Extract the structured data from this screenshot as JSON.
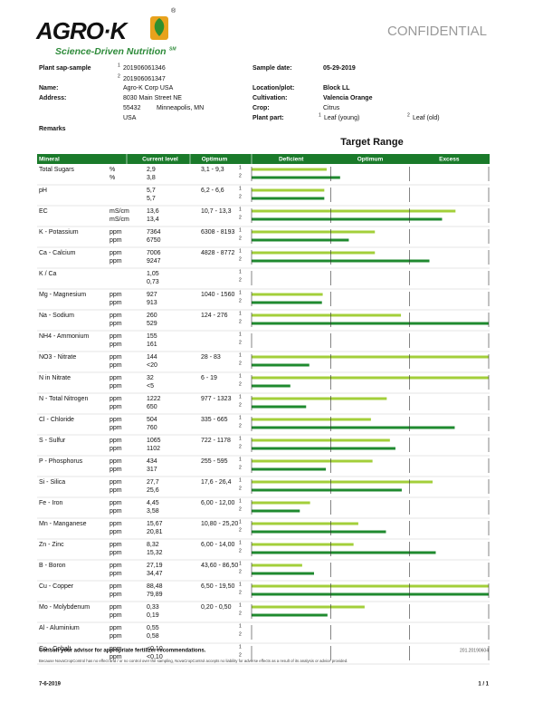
{
  "header": {
    "logo": "AGRO·K",
    "registered": "®",
    "tagline": "Science-Driven Nutrition",
    "tagline_mark": "SM",
    "confidential": "CONFIDENTIAL"
  },
  "info": {
    "markers": [
      "1",
      "2"
    ],
    "sample_label": "Plant sap-sample",
    "sample_ids": [
      "201906061346",
      "201906061347"
    ],
    "name_label": "Name:",
    "name": "Agro-K Corp USA",
    "address_label": "Address:",
    "street": "8030 Main Street NE",
    "zip": "55432",
    "city": "Minneapolis, MN",
    "country": "USA",
    "date_label": "Sample date:",
    "date": "05-29-2019",
    "location_label": "Location/plot:",
    "location": "Block LL",
    "cultivation_label": "Cultivation:",
    "cultivation": "Valencia Orange",
    "crop_label": "Crop:",
    "crop": "Citrus",
    "part_label": "Plant part:",
    "parts": [
      "Leaf (young)",
      "Leaf (old)"
    ],
    "remarks_label": "Remarks"
  },
  "target_title": "Target Range",
  "table": {
    "columns": [
      "Mineral",
      "Current level",
      "Optimum",
      "Deficient",
      "Optimum",
      "Excess"
    ],
    "bar_colors": [
      "#a3cf3a",
      "#1f8a2f"
    ],
    "bar_scale": {
      "xlim": [
        0,
        3
      ],
      "xticks": [
        0,
        1,
        2,
        3
      ]
    },
    "rows": [
      {
        "mineral": "Total Sugars",
        "units": [
          "%",
          "%"
        ],
        "current": [
          "2,9",
          "3,8"
        ],
        "optimum": "3,1 - 9,3",
        "bars": [
          0.95,
          1.12
        ]
      },
      {
        "mineral": "pH",
        "units": [
          null,
          null
        ],
        "current": [
          "5,7",
          "5,7"
        ],
        "optimum": "6,2 - 6,6",
        "bars": [
          0.92,
          0.92
        ]
      },
      {
        "mineral": "EC",
        "units": [
          "mS/cm",
          "mS/cm"
        ],
        "current": [
          "13,6",
          "13,4"
        ],
        "optimum": "10,7 - 13,3",
        "bars": [
          2.58,
          2.41
        ]
      },
      {
        "mineral": "K - Potassium",
        "units": [
          "ppm",
          "ppm"
        ],
        "current": [
          "7364",
          "6750"
        ],
        "optimum": "6308 - 8193",
        "bars": [
          1.56,
          1.23
        ]
      },
      {
        "mineral": "Ca - Calcium",
        "units": [
          "ppm",
          "ppm"
        ],
        "current": [
          "7006",
          "9247"
        ],
        "optimum": "4828 - 8772",
        "bars": [
          1.56,
          2.25
        ]
      },
      {
        "mineral": "K / Ca",
        "units": [
          null,
          null
        ],
        "current": [
          "1,05",
          "0,73"
        ],
        "optimum": null,
        "bars": [
          null,
          null
        ]
      },
      {
        "mineral": "Mg - Magnesium",
        "units": [
          "ppm",
          "ppm"
        ],
        "current": [
          "927",
          "913"
        ],
        "optimum": "1040 - 1560",
        "bars": [
          0.9,
          0.89
        ]
      },
      {
        "mineral": "Na - Sodium",
        "units": [
          "ppm",
          "ppm"
        ],
        "current": [
          "260",
          "529"
        ],
        "optimum": "124 - 276",
        "bars": [
          1.89,
          3
        ]
      },
      {
        "mineral": "NH4 - Ammonium",
        "units": [
          "ppm",
          "ppm"
        ],
        "current": [
          "155",
          "161"
        ],
        "optimum": null,
        "bars": [
          null,
          null
        ]
      },
      {
        "mineral": "NO3 - Nitrate",
        "units": [
          "ppm",
          "ppm"
        ],
        "current": [
          "144",
          "<20"
        ],
        "optimum": "28 - 83",
        "bars": [
          3,
          0.73
        ]
      },
      {
        "mineral": "N in Nitrate",
        "units": [
          "ppm",
          "ppm"
        ],
        "current": [
          "32",
          "<5"
        ],
        "optimum": "6 - 19",
        "bars": [
          3,
          0.49
        ]
      },
      {
        "mineral": "N - Total Nitrogen",
        "units": [
          "ppm",
          "ppm"
        ],
        "current": [
          "1222",
          "650"
        ],
        "optimum": "977 - 1323",
        "bars": [
          1.71,
          0.69
        ]
      },
      {
        "mineral": "Cl - Chloride",
        "units": [
          "ppm",
          "ppm"
        ],
        "current": [
          "504",
          "760"
        ],
        "optimum": "335 - 665",
        "bars": [
          1.51,
          2.57
        ]
      },
      {
        "mineral": "S - Sulfur",
        "units": [
          "ppm",
          "ppm"
        ],
        "current": [
          "1065",
          "1102"
        ],
        "optimum": "722 - 1178",
        "bars": [
          1.75,
          1.82
        ]
      },
      {
        "mineral": "P - Phosphorus",
        "units": [
          "ppm",
          "ppm"
        ],
        "current": [
          "434",
          "317"
        ],
        "optimum": "255 - 595",
        "bars": [
          1.53,
          0.94
        ]
      },
      {
        "mineral": "Si - Silica",
        "units": [
          "ppm",
          "ppm"
        ],
        "current": [
          "27,7",
          "25,6"
        ],
        "optimum": "17,6 - 26,4",
        "bars": [
          2.29,
          1.9
        ]
      },
      {
        "mineral": "Fe - Iron",
        "units": [
          "ppm",
          "ppm"
        ],
        "current": [
          "4,45",
          "3,58"
        ],
        "optimum": "6,00 - 12,00",
        "bars": [
          0.74,
          0.61
        ]
      },
      {
        "mineral": "Mn - Manganese",
        "units": [
          "ppm",
          "ppm"
        ],
        "current": [
          "15,67",
          "20,81"
        ],
        "optimum": "10,80 - 25,20",
        "bars": [
          1.35,
          1.7
        ]
      },
      {
        "mineral": "Zn - Zinc",
        "units": [
          "ppm",
          "ppm"
        ],
        "current": [
          "8,32",
          "15,32"
        ],
        "optimum": "6,00 - 14,00",
        "bars": [
          1.29,
          2.33
        ]
      },
      {
        "mineral": "B - Boron",
        "units": [
          "ppm",
          "ppm"
        ],
        "current": [
          "27,19",
          "34,47"
        ],
        "optimum": "43,60 - 86,50",
        "bars": [
          0.64,
          0.79
        ]
      },
      {
        "mineral": "Cu - Copper",
        "units": [
          "ppm",
          "ppm"
        ],
        "current": [
          "88,48",
          "79,89"
        ],
        "optimum": "6,50 - 19,50",
        "bars": [
          3,
          3
        ]
      },
      {
        "mineral": "Mo - Molybdenum",
        "units": [
          "ppm",
          "ppm"
        ],
        "current": [
          "0,33",
          "0,19"
        ],
        "optimum": "0,20 - 0,50",
        "bars": [
          1.43,
          0.96
        ]
      },
      {
        "mineral": "Al - Aluminium",
        "units": [
          "ppm",
          "ppm"
        ],
        "current": [
          "0,55",
          "0,58"
        ],
        "optimum": null,
        "bars": [
          null,
          null
        ]
      },
      {
        "mineral": "Co - Cobalt",
        "units": [
          "ppm",
          "ppm"
        ],
        "current": [
          "<0,10",
          "<0,10"
        ],
        "optimum": null,
        "bars": [
          null,
          null
        ]
      }
    ]
  },
  "footer": {
    "advice": "Consult your advisor for appropriate fertilizer recommendations.",
    "code": "201.20190604",
    "disclaimer": "Because NovaCropControl has no effect and / or no control over the sampling, NovaCropControl accepts no liability for adverse effects as a result of its analysis or advice provided.",
    "date": "7-6-2019",
    "page": "1 / 1"
  }
}
